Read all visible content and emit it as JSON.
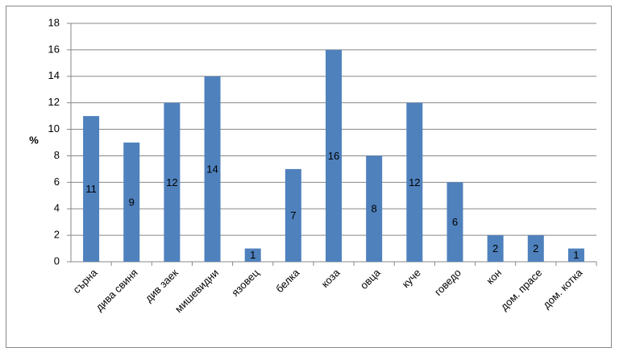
{
  "chart_data": {
    "type": "bar",
    "y_label": "%",
    "categories": [
      "сърна",
      "дива свиня",
      "див заек",
      "мишевидни",
      "язовец",
      "белка",
      "коза",
      "овца",
      "куче",
      "говедо",
      "кон",
      "дом. прасе",
      "дом. котка"
    ],
    "values": [
      11,
      9,
      12,
      14,
      1,
      7,
      16,
      8,
      12,
      6,
      2,
      2,
      1
    ],
    "color": "#4f81bd",
    "ylim": [
      0,
      18
    ],
    "yticks": [
      0,
      2,
      4,
      6,
      8,
      10,
      12,
      14,
      16,
      18
    ],
    "grid": true
  }
}
